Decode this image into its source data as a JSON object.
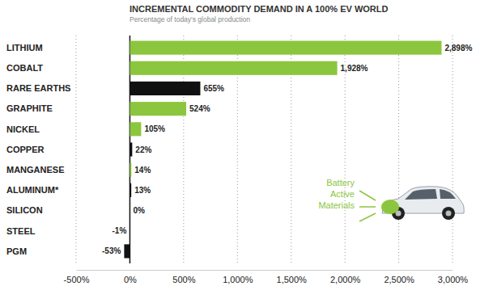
{
  "chart_data": {
    "type": "bar",
    "orientation": "horizontal",
    "title": "INCREMENTAL COMMODITY DEMAND IN A 100% EV WORLD",
    "subtitle": "Percentage of today's global production",
    "categories": [
      "LITHIUM",
      "COBALT",
      "RARE EARTHS",
      "GRAPHITE",
      "NICKEL",
      "COPPER",
      "MANGANESE",
      "ALUMINUM*",
      "SILICON",
      "STEEL",
      "PGM"
    ],
    "values": [
      2898,
      1928,
      655,
      524,
      105,
      22,
      14,
      13,
      0,
      -1,
      -53
    ],
    "value_labels": [
      "2,898%",
      "1,928%",
      "655%",
      "524%",
      "105%",
      "22%",
      "14%",
      "13%",
      "0%",
      "-1%",
      "-53%"
    ],
    "colors": [
      "#8cc63e",
      "#8cc63e",
      "#111111",
      "#8cc63e",
      "#8cc63e",
      "#111111",
      "#8cc63e",
      "#111111",
      "#8cc63e",
      "#111111",
      "#111111"
    ],
    "data_labels": true,
    "grid": true,
    "xlim": [
      -500,
      3000
    ],
    "xticks": [
      {
        "value": -500,
        "label": "-500%"
      },
      {
        "value": 0,
        "label": "0%"
      },
      {
        "value": 500,
        "label": "500%"
      },
      {
        "value": 1000,
        "label": "1,000%"
      },
      {
        "value": 1500,
        "label": "1,500%"
      },
      {
        "value": 2000,
        "label": "2,000%"
      },
      {
        "value": 2500,
        "label": "2,500%"
      },
      {
        "value": 3000,
        "label": "3,000%"
      }
    ],
    "annotations": [
      {
        "text": "Battery Active Materials"
      }
    ]
  }
}
